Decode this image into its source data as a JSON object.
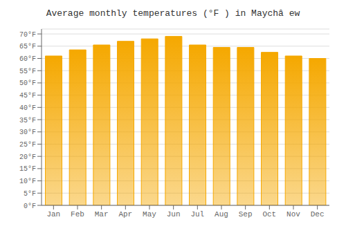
{
  "chart_data": {
    "type": "bar",
    "title": "Average monthly temperatures (°F ) in Maychâ ew",
    "categories": [
      "Jan",
      "Feb",
      "Mar",
      "Apr",
      "May",
      "Jun",
      "Jul",
      "Aug",
      "Sep",
      "Oct",
      "Nov",
      "Dec"
    ],
    "values": [
      61.0,
      63.5,
      65.5,
      67.0,
      68.0,
      69.0,
      65.5,
      64.5,
      64.5,
      62.5,
      61.0,
      60.0
    ],
    "color": "#F5A800",
    "ylim": [
      0,
      72
    ],
    "yticks": [
      {
        "value": 0,
        "label": "0°F"
      },
      {
        "value": 5,
        "label": "5°F"
      },
      {
        "value": 10,
        "label": "10°F"
      },
      {
        "value": 15,
        "label": "15°F"
      },
      {
        "value": 20,
        "label": "20°F"
      },
      {
        "value": 25,
        "label": "25°F"
      },
      {
        "value": 30,
        "label": "30°F"
      },
      {
        "value": 35,
        "label": "35°F"
      },
      {
        "value": 40,
        "label": "40°F"
      },
      {
        "value": 45,
        "label": "45°F"
      },
      {
        "value": 50,
        "label": "50°F"
      },
      {
        "value": 55,
        "label": "55°F"
      },
      {
        "value": 60,
        "label": "60°F"
      },
      {
        "value": 65,
        "label": "65°F"
      },
      {
        "value": 70,
        "label": "70°F"
      }
    ],
    "grid": true
  }
}
